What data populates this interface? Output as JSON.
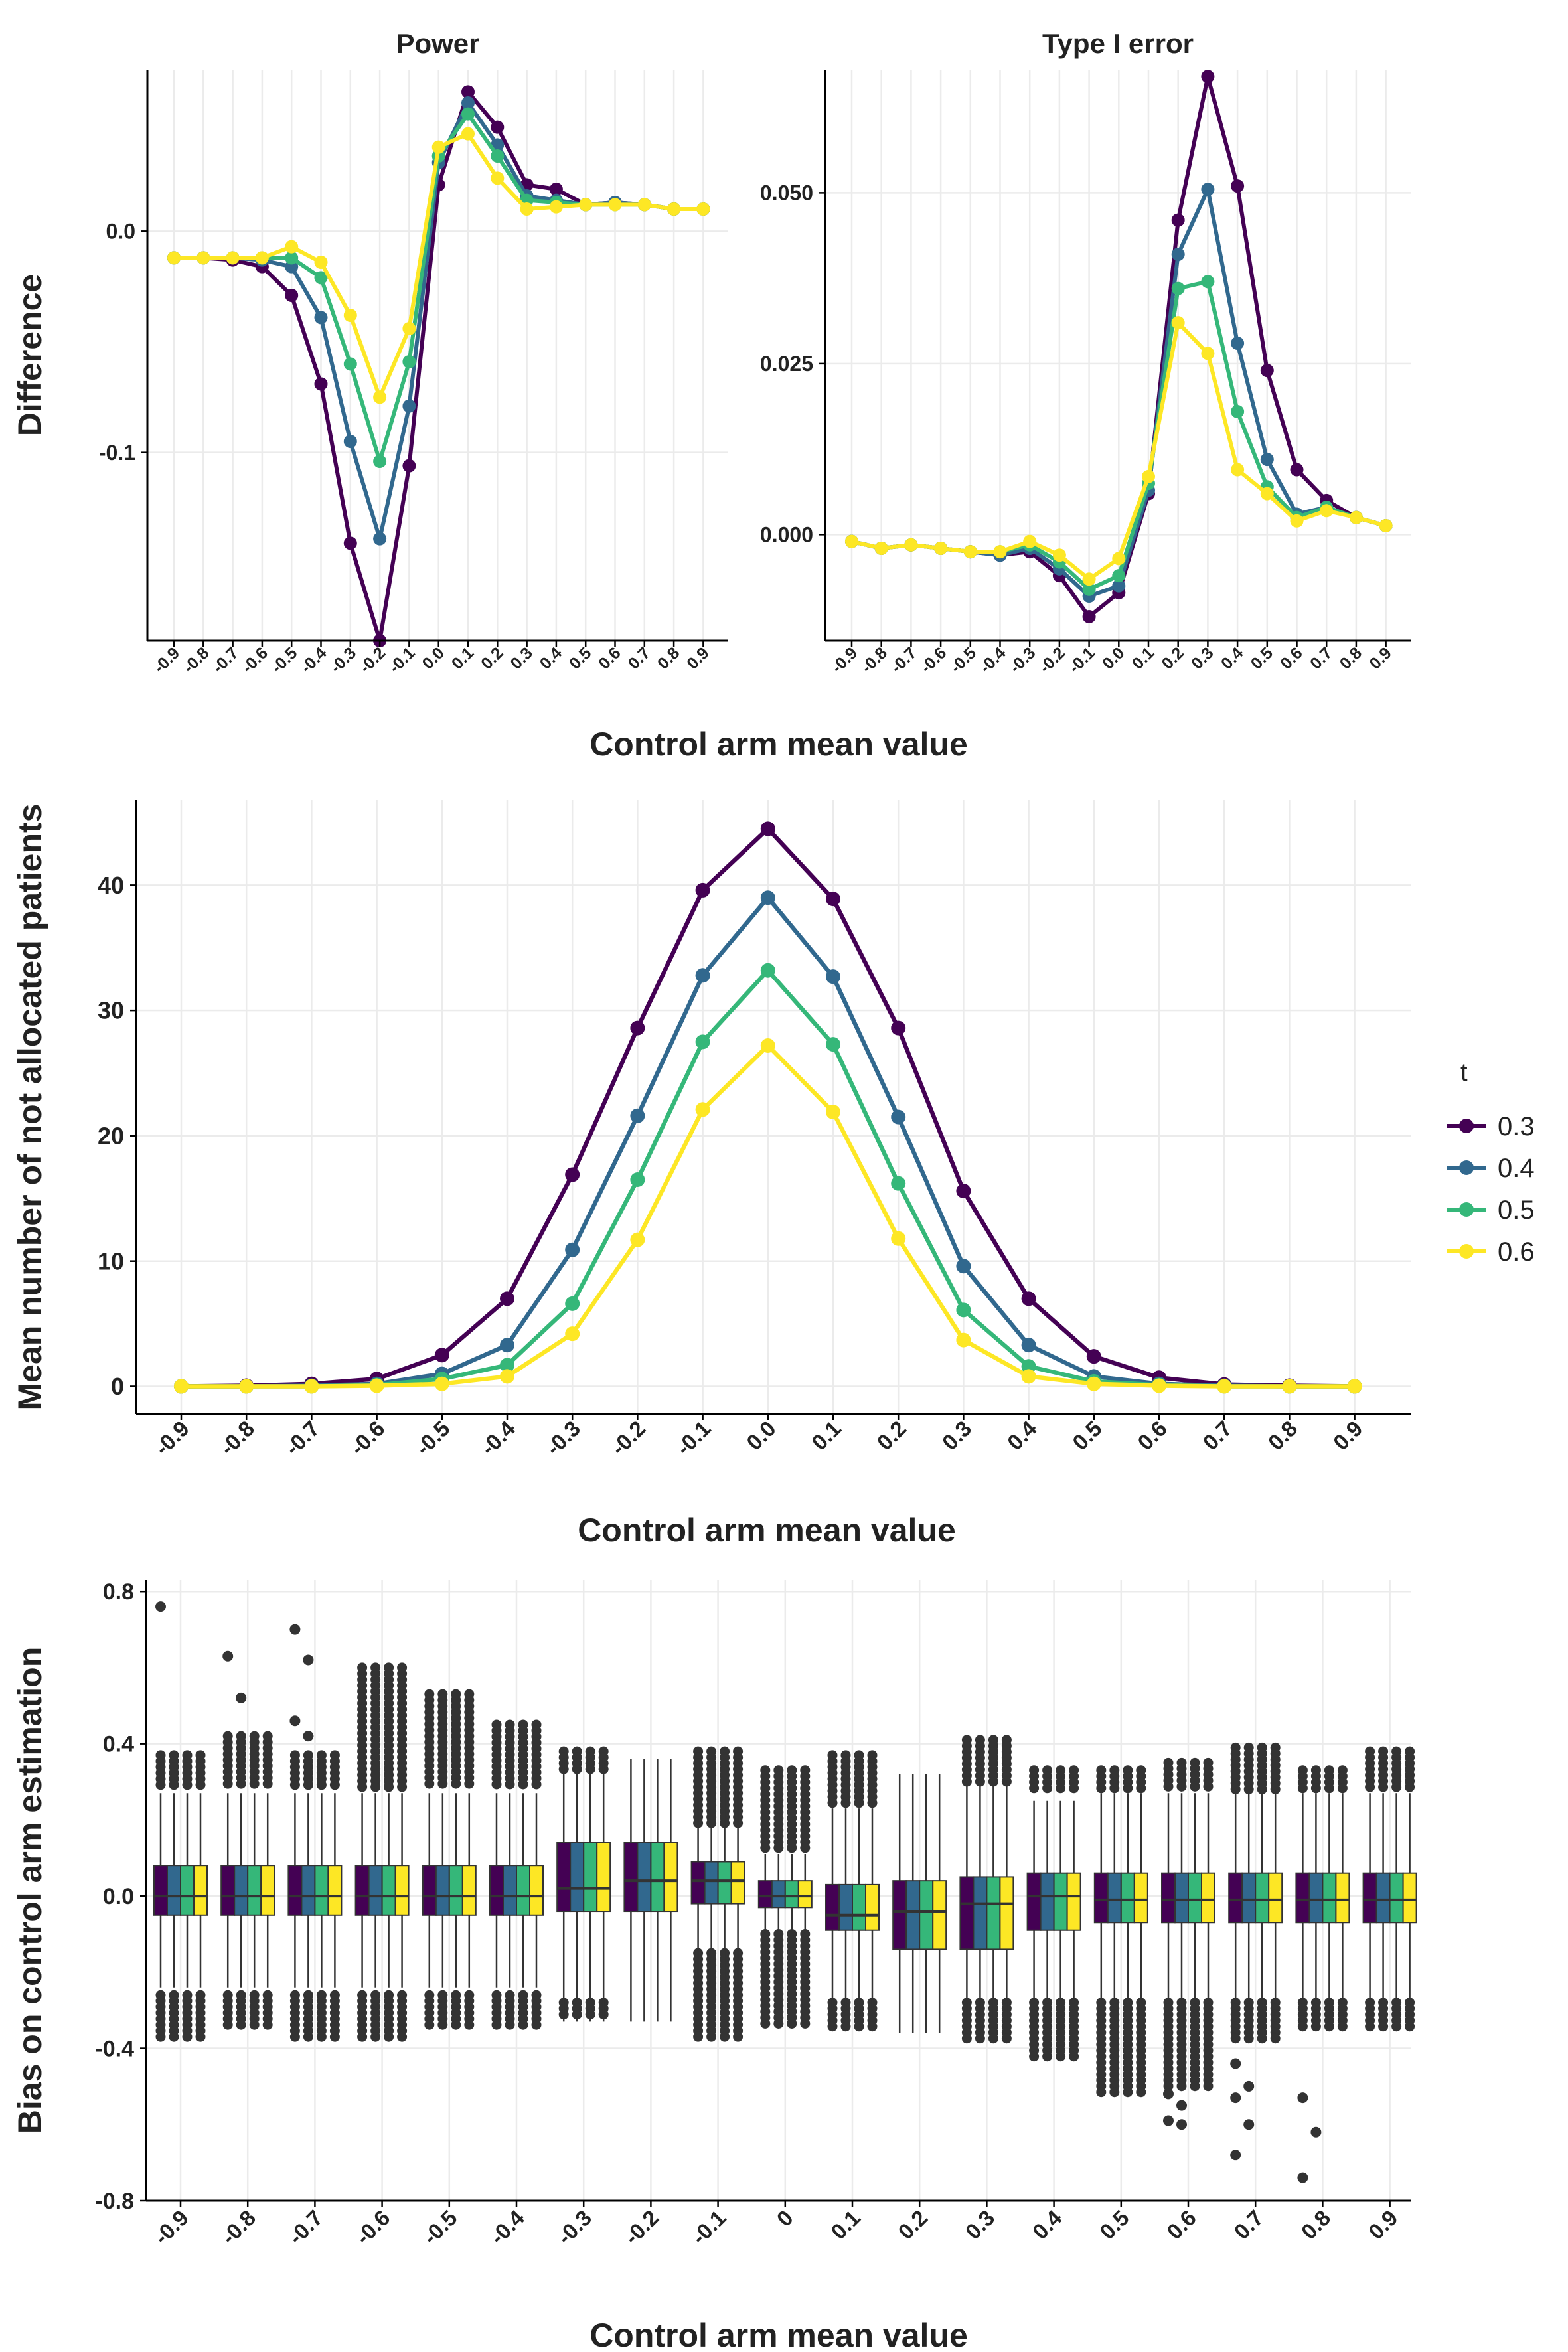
{
  "colors": {
    "t0.3": "#440154",
    "t0.4": "#31688E",
    "t0.5": "#35B779",
    "t0.6": "#FDE725",
    "outlier": "#333333",
    "grid": "#EBEBEB",
    "axis": "#000000"
  },
  "legend": {
    "title": "t",
    "items": [
      {
        "label": "0.3",
        "color": "#440154"
      },
      {
        "label": "0.4",
        "color": "#31688E"
      },
      {
        "label": "0.5",
        "color": "#35B779"
      },
      {
        "label": "0.6",
        "color": "#FDE725"
      }
    ]
  },
  "chart_data": [
    {
      "id": "power",
      "type": "line",
      "title": "Power",
      "ylabel": "Difference",
      "xlabel": "Control arm mean value",
      "x": [
        -0.9,
        -0.8,
        -0.7,
        -0.6,
        -0.5,
        -0.4,
        -0.3,
        -0.2,
        -0.1,
        0.0,
        0.1,
        0.2,
        0.3,
        0.4,
        0.5,
        0.6,
        0.7,
        0.8,
        0.9
      ],
      "xticklabels": [
        "-0.9",
        "-0.8",
        "-0.7",
        "-0.6",
        "-0.5",
        "-0.4",
        "-0.3",
        "-0.2",
        "-0.1",
        "0.0",
        "0.1",
        "0.2",
        "0.3",
        "0.4",
        "0.5",
        "0.6",
        "0.7",
        "0.8",
        "0.9"
      ],
      "ylim": [
        -0.185,
        0.073
      ],
      "yticks": [
        0.0,
        -0.1
      ],
      "yticklabels": [
        "0.0",
        "-0.1"
      ],
      "series": [
        {
          "name": "0.3",
          "values": [
            -0.012,
            -0.012,
            -0.013,
            -0.016,
            -0.029,
            -0.069,
            -0.141,
            -0.185,
            -0.106,
            0.021,
            0.063,
            0.047,
            0.021,
            0.019,
            0.012,
            0.013,
            0.012,
            0.01,
            0.01
          ]
        },
        {
          "name": "0.4",
          "values": [
            -0.012,
            -0.012,
            -0.012,
            -0.013,
            -0.016,
            -0.039,
            -0.095,
            -0.139,
            -0.079,
            0.031,
            0.058,
            0.039,
            0.016,
            0.014,
            0.012,
            0.013,
            0.012,
            0.01,
            0.01
          ]
        },
        {
          "name": "0.5",
          "values": [
            -0.012,
            -0.012,
            -0.012,
            -0.012,
            -0.012,
            -0.021,
            -0.06,
            -0.104,
            -0.059,
            0.034,
            0.053,
            0.034,
            0.014,
            0.013,
            0.012,
            0.012,
            0.012,
            0.01,
            0.01
          ]
        },
        {
          "name": "0.6",
          "values": [
            -0.012,
            -0.012,
            -0.012,
            -0.012,
            -0.007,
            -0.014,
            -0.038,
            -0.075,
            -0.044,
            0.038,
            0.044,
            0.024,
            0.01,
            0.011,
            0.012,
            0.012,
            0.012,
            0.01,
            0.01
          ]
        }
      ]
    },
    {
      "id": "type1",
      "type": "line",
      "title": "Type I error",
      "ylabel": "",
      "xlabel": "Control arm mean value",
      "x": [
        -0.9,
        -0.8,
        -0.7,
        -0.6,
        -0.5,
        -0.4,
        -0.3,
        -0.2,
        -0.1,
        0.0,
        0.1,
        0.2,
        0.3,
        0.4,
        0.5,
        0.6,
        0.7,
        0.8,
        0.9
      ],
      "xticklabels": [
        "-0.9",
        "-0.8",
        "-0.7",
        "-0.6",
        "-0.5",
        "-0.4",
        "-0.3",
        "-0.2",
        "-0.1",
        "0.0",
        "0.1",
        "0.2",
        "0.3",
        "0.4",
        "0.5",
        "0.6",
        "0.7",
        "0.8",
        "0.9"
      ],
      "ylim": [
        -0.0155,
        0.068
      ],
      "yticks": [
        0.0,
        0.025,
        0.05
      ],
      "yticklabels": [
        "0.000",
        "0.025",
        "0.050"
      ],
      "series": [
        {
          "name": "0.3",
          "values": [
            -0.001,
            -0.002,
            -0.0015,
            -0.002,
            -0.0025,
            -0.003,
            -0.0025,
            -0.006,
            -0.012,
            -0.0085,
            0.006,
            0.046,
            0.067,
            0.051,
            0.024,
            0.0095,
            0.005,
            0.0025,
            0.0013
          ]
        },
        {
          "name": "0.4",
          "values": [
            -0.001,
            -0.002,
            -0.0015,
            -0.002,
            -0.0025,
            -0.003,
            -0.002,
            -0.005,
            -0.009,
            -0.0075,
            0.0065,
            0.041,
            0.0505,
            0.028,
            0.011,
            0.003,
            0.004,
            0.0025,
            0.0013
          ]
        },
        {
          "name": "0.5",
          "values": [
            -0.001,
            -0.002,
            -0.0015,
            -0.002,
            -0.0025,
            -0.0025,
            -0.0015,
            -0.004,
            -0.008,
            -0.006,
            0.0075,
            0.036,
            0.037,
            0.018,
            0.007,
            0.0025,
            0.004,
            0.0025,
            0.0013
          ]
        },
        {
          "name": "0.6",
          "values": [
            -0.001,
            -0.002,
            -0.0015,
            -0.002,
            -0.0025,
            -0.0025,
            -0.001,
            -0.003,
            -0.0065,
            -0.0035,
            0.0085,
            0.031,
            0.0265,
            0.0095,
            0.006,
            0.002,
            0.0035,
            0.0025,
            0.0013
          ]
        }
      ]
    },
    {
      "id": "notalloc",
      "type": "line",
      "title": "",
      "ylabel": "Mean number of not allocated patients",
      "xlabel": "Control arm mean value",
      "x": [
        -0.9,
        -0.8,
        -0.7,
        -0.6,
        -0.5,
        -0.4,
        -0.3,
        -0.2,
        -0.1,
        0.0,
        0.1,
        0.2,
        0.3,
        0.4,
        0.5,
        0.6,
        0.7,
        0.8,
        0.9
      ],
      "xticklabels": [
        "-0.9",
        "-0.8",
        "-0.7",
        "-0.6",
        "-0.5",
        "-0.4",
        "-0.3",
        "-0.2",
        "-0.1",
        "0.0",
        "0.1",
        "0.2",
        "0.3",
        "0.4",
        "0.5",
        "0.6",
        "0.7",
        "0.8",
        "0.9"
      ],
      "ylim": [
        -2.2,
        46.8
      ],
      "yticks": [
        0,
        10,
        20,
        30,
        40
      ],
      "yticklabels": [
        "0",
        "10",
        "20",
        "30",
        "40"
      ],
      "series": [
        {
          "name": "0.3",
          "values": [
            0.0,
            0.05,
            0.2,
            0.6,
            2.5,
            7.0,
            16.9,
            28.6,
            39.6,
            44.5,
            38.9,
            28.6,
            15.6,
            7.0,
            2.4,
            0.7,
            0.15,
            0.05,
            0.0
          ]
        },
        {
          "name": "0.4",
          "values": [
            0.0,
            0.0,
            0.05,
            0.2,
            1.0,
            3.3,
            10.9,
            21.6,
            32.8,
            39.0,
            32.7,
            21.5,
            9.6,
            3.3,
            0.8,
            0.2,
            0.05,
            0.0,
            0.0
          ]
        },
        {
          "name": "0.5",
          "values": [
            0.0,
            0.0,
            0.0,
            0.1,
            0.6,
            1.7,
            6.6,
            16.5,
            27.5,
            33.2,
            27.3,
            16.2,
            6.1,
            1.6,
            0.4,
            0.1,
            0.0,
            0.0,
            0.0
          ]
        },
        {
          "name": "0.6",
          "values": [
            0.0,
            0.0,
            0.0,
            0.05,
            0.2,
            0.8,
            4.2,
            11.7,
            22.1,
            27.2,
            21.9,
            11.8,
            3.7,
            0.8,
            0.2,
            0.05,
            0.0,
            0.0,
            0.0
          ]
        }
      ]
    },
    {
      "id": "bias",
      "type": "box",
      "title": "",
      "ylabel": "Bias on control arm estimation",
      "xlabel": "Control arm mean value",
      "categories": [
        "-0.9",
        "-0.8",
        "-0.7",
        "-0.6",
        "-0.5",
        "-0.4",
        "-0.3",
        "-0.2",
        "-0.1",
        "0",
        "0.1",
        "0.2",
        "0.3",
        "0.4",
        "0.5",
        "0.6",
        "0.7",
        "0.8",
        "0.9"
      ],
      "ylim": [
        -0.8,
        0.83
      ],
      "yticks": [
        -0.8,
        -0.4,
        0.0,
        0.4,
        0.8
      ],
      "yticklabels": [
        "-0.8",
        "-0.4",
        "0.0",
        "0.4",
        "0.8"
      ],
      "groups": [
        {
          "q1": -0.05,
          "median": 0.0,
          "q3": 0.08,
          "whisker_low": -0.24,
          "whisker_high": 0.27,
          "outlier_low": [
            -0.26,
            -0.38
          ],
          "outlier_high": [
            0.28,
            0.37
          ],
          "extra_outliers": [
            0.76
          ]
        },
        {
          "q1": -0.05,
          "median": 0.0,
          "q3": 0.08,
          "whisker_low": -0.24,
          "whisker_high": 0.27,
          "outlier_low": [
            -0.26,
            -0.35
          ],
          "outlier_high": [
            0.28,
            0.42
          ],
          "extra_outliers": [
            0.63,
            0.52
          ]
        },
        {
          "q1": -0.05,
          "median": 0.0,
          "q3": 0.08,
          "whisker_low": -0.24,
          "whisker_high": 0.27,
          "outlier_low": [
            -0.26,
            -0.38
          ],
          "outlier_high": [
            0.28,
            0.37
          ],
          "extra_outliers": [
            0.7,
            0.62,
            0.46,
            0.42
          ]
        },
        {
          "q1": -0.05,
          "median": 0.0,
          "q3": 0.08,
          "whisker_low": -0.24,
          "whisker_high": 0.27,
          "outlier_low": [
            -0.26,
            -0.38
          ],
          "outlier_high": [
            0.28,
            0.6
          ],
          "extra_outliers": []
        },
        {
          "q1": -0.05,
          "median": 0.0,
          "q3": 0.08,
          "whisker_low": -0.24,
          "whisker_high": 0.27,
          "outlier_low": [
            -0.26,
            -0.34
          ],
          "outlier_high": [
            0.28,
            0.53
          ],
          "extra_outliers": []
        },
        {
          "q1": -0.05,
          "median": 0.0,
          "q3": 0.08,
          "whisker_low": -0.24,
          "whisker_high": 0.27,
          "outlier_low": [
            -0.26,
            -0.35
          ],
          "outlier_high": [
            0.28,
            0.45
          ],
          "extra_outliers": []
        },
        {
          "q1": -0.04,
          "median": 0.02,
          "q3": 0.14,
          "whisker_low": -0.33,
          "whisker_high": 0.36,
          "outlier_low": [
            -0.28,
            -0.32
          ],
          "outlier_high": [
            0.33,
            0.38
          ],
          "extra_outliers": []
        },
        {
          "q1": -0.04,
          "median": 0.04,
          "q3": 0.14,
          "whisker_low": -0.33,
          "whisker_high": 0.36,
          "outlier_low": [],
          "outlier_high": [],
          "extra_outliers": []
        },
        {
          "q1": -0.02,
          "median": 0.04,
          "q3": 0.09,
          "whisker_low": -0.24,
          "whisker_high": 0.28,
          "outlier_low": [
            -0.15,
            -0.37
          ],
          "outlier_high": [
            0.18,
            0.38
          ],
          "extra_outliers": []
        },
        {
          "q1": -0.03,
          "median": 0.0,
          "q3": 0.04,
          "whisker_low": -0.1,
          "whisker_high": 0.11,
          "outlier_low": [
            -0.1,
            -0.35
          ],
          "outlier_high": [
            0.12,
            0.33
          ],
          "extra_outliers": []
        },
        {
          "q1": -0.09,
          "median": -0.05,
          "q3": 0.03,
          "whisker_low": -0.3,
          "whisker_high": 0.23,
          "outlier_low": [
            -0.28,
            -0.35
          ],
          "outlier_high": [
            0.24,
            0.37
          ],
          "extra_outliers": []
        },
        {
          "q1": -0.14,
          "median": -0.04,
          "q3": 0.04,
          "whisker_low": -0.36,
          "whisker_high": 0.32,
          "outlier_low": [],
          "outlier_high": [],
          "extra_outliers": []
        },
        {
          "q1": -0.14,
          "median": -0.02,
          "q3": 0.05,
          "whisker_low": -0.33,
          "whisker_high": 0.29,
          "outlier_low": [
            -0.28,
            -0.38
          ],
          "outlier_high": [
            0.3,
            0.41
          ],
          "extra_outliers": []
        },
        {
          "q1": -0.09,
          "median": 0.0,
          "q3": 0.06,
          "whisker_low": -0.27,
          "whisker_high": 0.25,
          "outlier_low": [
            -0.28,
            -0.43
          ],
          "outlier_high": [
            0.27,
            0.33
          ],
          "extra_outliers": []
        },
        {
          "q1": -0.07,
          "median": -0.01,
          "q3": 0.06,
          "whisker_low": -0.27,
          "whisker_high": 0.27,
          "outlier_low": [
            -0.28,
            -0.52
          ],
          "outlier_high": [
            0.28,
            0.33
          ],
          "extra_outliers": []
        },
        {
          "q1": -0.07,
          "median": -0.01,
          "q3": 0.06,
          "whisker_low": -0.27,
          "whisker_high": 0.27,
          "outlier_low": [
            -0.28,
            -0.5
          ],
          "outlier_high": [
            0.28,
            0.35
          ],
          "extra_outliers": [
            -0.52,
            -0.55,
            -0.59,
            -0.6
          ]
        },
        {
          "q1": -0.07,
          "median": -0.01,
          "q3": 0.06,
          "whisker_low": -0.27,
          "whisker_high": 0.27,
          "outlier_low": [
            -0.28,
            -0.38
          ],
          "outlier_high": [
            0.28,
            0.39
          ],
          "extra_outliers": [
            -0.44,
            -0.5,
            -0.53,
            -0.6,
            -0.68
          ]
        },
        {
          "q1": -0.07,
          "median": -0.01,
          "q3": 0.06,
          "whisker_low": -0.27,
          "whisker_high": 0.27,
          "outlier_low": [
            -0.28,
            -0.35
          ],
          "outlier_high": [
            0.28,
            0.33
          ],
          "extra_outliers": [
            -0.53,
            -0.62,
            -0.74
          ]
        },
        {
          "q1": -0.07,
          "median": -0.01,
          "q3": 0.06,
          "whisker_low": -0.27,
          "whisker_high": 0.27,
          "outlier_low": [
            -0.28,
            -0.35
          ],
          "outlier_high": [
            0.28,
            0.38
          ],
          "extra_outliers": []
        }
      ]
    }
  ]
}
